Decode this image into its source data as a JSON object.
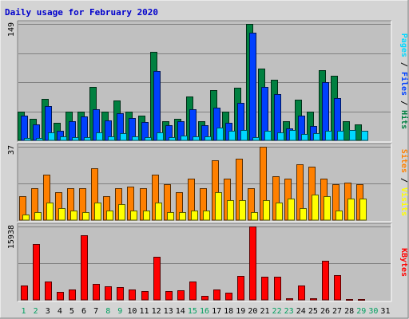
{
  "title": "Daily usage for February 2020",
  "colors": {
    "title": "#0000cc",
    "pages": "#00d8ff",
    "files": "#0040ff",
    "hits": "#008040",
    "visits": "#ffff00",
    "sites": "#ff8000",
    "kbytes": "#ff0000",
    "weekend_day": "#00a060",
    "weekday": "#000000",
    "plot_bg": "#c0c0c0",
    "frame_bg": "#d4d4d4",
    "grid": "#808080"
  },
  "chart_data": [
    {
      "type": "bar",
      "name": "hits-files-pages",
      "categories": [
        "1",
        "2",
        "3",
        "4",
        "5",
        "6",
        "7",
        "8",
        "9",
        "10",
        "11",
        "12",
        "13",
        "14",
        "15",
        "16",
        "17",
        "18",
        "19",
        "20",
        "21",
        "22",
        "23",
        "24",
        "25",
        "26",
        "27",
        "28",
        "29",
        "30",
        "31"
      ],
      "ymax": 149,
      "ymax_label": "149",
      "grid_lines": 3,
      "side_labels": [
        {
          "text": "Pages",
          "color_key": "pages"
        },
        {
          "text": " / ",
          "color_key": "weekday"
        },
        {
          "text": "Files",
          "color_key": "files"
        },
        {
          "text": " / ",
          "color_key": "weekday"
        },
        {
          "text": "Hits",
          "color_key": "hits"
        }
      ],
      "series": [
        {
          "key": "hits",
          "values": [
            37,
            28,
            53,
            22,
            37,
            37,
            68,
            37,
            51,
            37,
            32,
            113,
            24,
            28,
            56,
            24,
            64,
            37,
            67,
            149,
            92,
            78,
            24,
            52,
            37,
            90,
            83,
            24,
            20,
            0,
            0
          ]
        },
        {
          "key": "files",
          "values": [
            32,
            20,
            44,
            12,
            25,
            31,
            40,
            26,
            35,
            29,
            23,
            89,
            19,
            24,
            40,
            19,
            42,
            22,
            48,
            138,
            68,
            59,
            15,
            32,
            18,
            75,
            54,
            0,
            0,
            0,
            0
          ]
        },
        {
          "key": "pages",
          "values": [
            3,
            3,
            10,
            5,
            4,
            4,
            10,
            5,
            9,
            5,
            4,
            10,
            4,
            6,
            5,
            5,
            16,
            12,
            13,
            4,
            12,
            10,
            13,
            8,
            9,
            12,
            12,
            13,
            12,
            0,
            0
          ]
        }
      ]
    },
    {
      "type": "bar",
      "name": "sites-visits",
      "categories": [
        "1",
        "2",
        "3",
        "4",
        "5",
        "6",
        "7",
        "8",
        "9",
        "10",
        "11",
        "12",
        "13",
        "14",
        "15",
        "16",
        "17",
        "18",
        "19",
        "20",
        "21",
        "22",
        "23",
        "24",
        "25",
        "26",
        "27",
        "28",
        "29",
        "30",
        "31"
      ],
      "ymax": 37,
      "ymax_label": "37",
      "grid_lines": 1,
      "side_labels": [
        {
          "text": "Sites",
          "color_key": "sites"
        },
        {
          "text": " / ",
          "color_key": "weekday"
        },
        {
          "text": "Visits",
          "color_key": "visits"
        }
      ],
      "series": [
        {
          "key": "sites",
          "values": [
            12,
            16,
            23,
            14,
            16,
            16,
            26,
            12,
            16,
            17,
            16,
            23,
            18,
            14,
            21,
            16,
            30,
            21,
            31,
            16,
            37,
            22,
            21,
            28,
            27,
            21,
            18,
            19,
            18,
            0,
            0
          ]
        },
        {
          "key": "visits",
          "values": [
            3,
            4,
            9,
            6,
            5,
            4,
            9,
            5,
            8,
            5,
            5,
            9,
            4,
            4,
            5,
            5,
            14,
            10,
            10,
            4,
            10,
            9,
            11,
            6,
            13,
            12,
            5,
            11,
            11,
            0,
            0
          ]
        }
      ]
    },
    {
      "type": "bar",
      "name": "kbytes",
      "categories": [
        "1",
        "2",
        "3",
        "4",
        "5",
        "6",
        "7",
        "8",
        "9",
        "10",
        "11",
        "12",
        "13",
        "14",
        "15",
        "16",
        "17",
        "18",
        "19",
        "20",
        "21",
        "22",
        "23",
        "24",
        "25",
        "26",
        "27",
        "28",
        "29",
        "30",
        "31"
      ],
      "ymax": 15938,
      "ymax_label": "15938",
      "grid_lines": 1,
      "side_labels": [
        {
          "text": "KBytes",
          "color_key": "kbytes"
        }
      ],
      "series": [
        {
          "key": "kbytes",
          "values": [
            3050,
            12200,
            3900,
            1650,
            2200,
            14100,
            3550,
            2950,
            2800,
            2200,
            1900,
            9300,
            1950,
            2100,
            3950,
            950,
            2300,
            1600,
            5200,
            15938,
            5050,
            4950,
            300,
            3100,
            300,
            8500,
            5350,
            100,
            100,
            0,
            0
          ]
        }
      ]
    }
  ],
  "x_axis": {
    "labels": [
      "1",
      "2",
      "3",
      "4",
      "5",
      "6",
      "7",
      "8",
      "9",
      "10",
      "11",
      "12",
      "13",
      "14",
      "15",
      "16",
      "17",
      "18",
      "19",
      "20",
      "21",
      "22",
      "23",
      "24",
      "25",
      "26",
      "27",
      "28",
      "29",
      "30",
      "31"
    ],
    "weekend_days": [
      "1",
      "2",
      "8",
      "9",
      "15",
      "16",
      "22",
      "23",
      "29",
      "30"
    ]
  }
}
